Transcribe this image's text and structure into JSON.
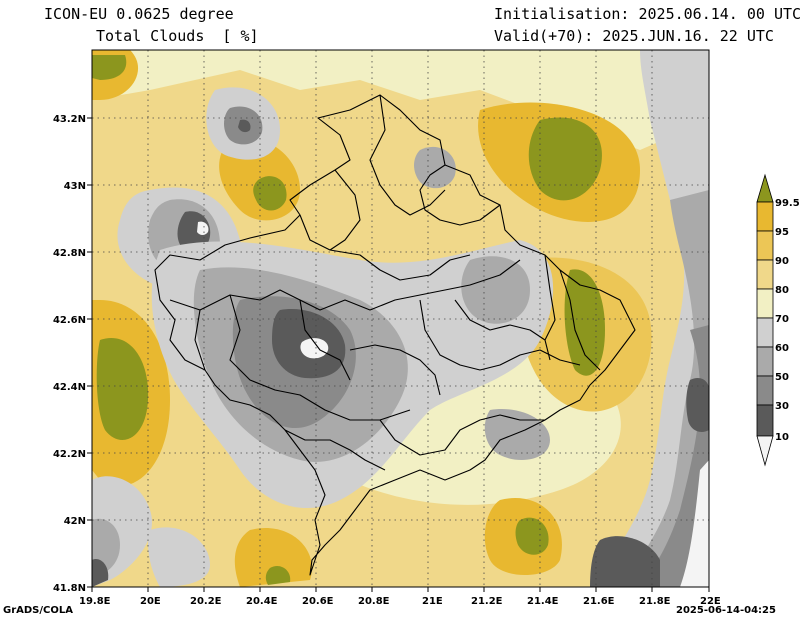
{
  "header": {
    "model": "ICON-EU 0.0625 degree",
    "variable": "Total Clouds  [ %]",
    "init": "Initialisation: 2025.06.14. 00 UTC",
    "valid": "Valid(+70): 2025.JUN.16. 22 UTC"
  },
  "axes": {
    "lon_ticks": [
      "19.8E",
      "20E",
      "20.2E",
      "20.4E",
      "20.6E",
      "20.8E",
      "21E",
      "21.2E",
      "21.4E",
      "21.6E",
      "21.8E",
      "22E"
    ],
    "lat_ticks": [
      "43.2N",
      "43N",
      "42.8N",
      "42.6N",
      "42.4N",
      "42.2N",
      "42N",
      "41.8N"
    ],
    "lon_range": [
      19.8,
      22.0
    ],
    "lat_range": [
      41.8,
      43.4
    ],
    "grid": "dotted"
  },
  "colorbar": {
    "labels": [
      "99.5",
      "95",
      "90",
      "80",
      "70",
      "60",
      "50",
      "30",
      "10"
    ],
    "colors": [
      "#8c961e",
      "#e8b830",
      "#ecc656",
      "#f0d88a",
      "#f2f0c4",
      "#d0d0d0",
      "#aaaaaa",
      "#8a8a8a",
      "#5a5a5a",
      "#f4f4f4"
    ]
  },
  "footer": {
    "credit": "GrADS/COLA",
    "timestamp": "2025-06-14-04:25"
  }
}
